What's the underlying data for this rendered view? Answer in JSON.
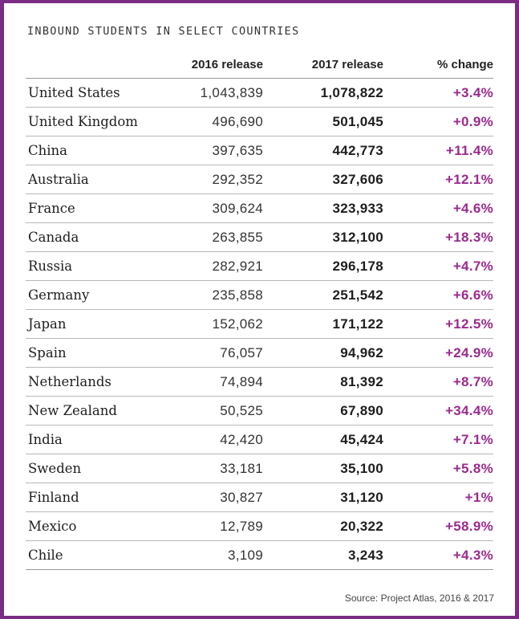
{
  "chart_data": {
    "type": "table",
    "title": "INBOUND STUDENTS IN SELECT COUNTRIES",
    "columns": [
      "",
      "2016 release",
      "2017 release",
      "% change"
    ],
    "rows": [
      {
        "country": "United States",
        "v2016": "1,043,839",
        "v2017": "1,078,822",
        "change": "+3.4%"
      },
      {
        "country": "United Kingdom",
        "v2016": "496,690",
        "v2017": "501,045",
        "change": "+0.9%"
      },
      {
        "country": "China",
        "v2016": "397,635",
        "v2017": "442,773",
        "change": "+11.4%"
      },
      {
        "country": "Australia",
        "v2016": "292,352",
        "v2017": "327,606",
        "change": "+12.1%"
      },
      {
        "country": "France",
        "v2016": "309,624",
        "v2017": "323,933",
        "change": "+4.6%"
      },
      {
        "country": "Canada",
        "v2016": "263,855",
        "v2017": "312,100",
        "change": "+18.3%"
      },
      {
        "country": "Russia",
        "v2016": "282,921",
        "v2017": "296,178",
        "change": "+4.7%"
      },
      {
        "country": "Germany",
        "v2016": "235,858",
        "v2017": "251,542",
        "change": "+6.6%"
      },
      {
        "country": "Japan",
        "v2016": "152,062",
        "v2017": "171,122",
        "change": "+12.5%"
      },
      {
        "country": "Spain",
        "v2016": "76,057",
        "v2017": "94,962",
        "change": "+24.9%"
      },
      {
        "country": "Netherlands",
        "v2016": "74,894",
        "v2017": "81,392",
        "change": "+8.7%"
      },
      {
        "country": "New Zealand",
        "v2016": "50,525",
        "v2017": "67,890",
        "change": "+34.4%"
      },
      {
        "country": "India",
        "v2016": "42,420",
        "v2017": "45,424",
        "change": "+7.1%"
      },
      {
        "country": "Sweden",
        "v2016": "33,181",
        "v2017": "35,100",
        "change": "+5.8%"
      },
      {
        "country": "Finland",
        "v2016": "30,827",
        "v2017": "31,120",
        "change": "+1%"
      },
      {
        "country": "Mexico",
        "v2016": "12,789",
        "v2017": "20,322",
        "change": "+58.9%"
      },
      {
        "country": "Chile",
        "v2016": "3,109",
        "v2017": "3,243",
        "change": "+4.3%"
      }
    ],
    "source": "Source: Project Atlas, 2016 & 2017"
  },
  "colors": {
    "frame": "#7b2c83",
    "change_text": "#9b2a8e"
  }
}
